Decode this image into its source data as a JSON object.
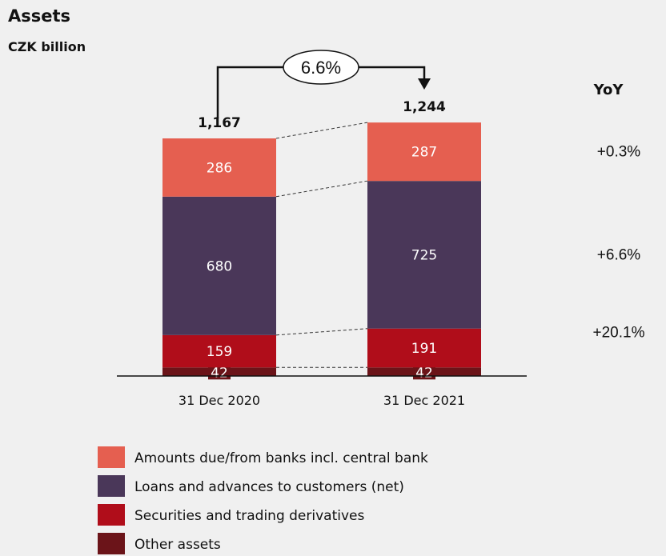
{
  "chart_data": {
    "type": "bar",
    "stacked": true,
    "title": "Assets",
    "subtitle": "CZK billion",
    "categories": [
      "31 Dec 2020",
      "31 Dec 2021"
    ],
    "totals": [
      "1,167",
      "1,244"
    ],
    "growth_label": "6.6%",
    "yoy_header": "YoY",
    "series": [
      {
        "name": "Other assets",
        "values": [
          42,
          42
        ],
        "color": "#6b1419",
        "yoy": ""
      },
      {
        "name": "Securities and trading derivatives",
        "values": [
          159,
          191
        ],
        "color": "#b00d1a",
        "yoy": "+20.1%"
      },
      {
        "name": "Loans and advances to customers (net)",
        "values": [
          680,
          725
        ],
        "color": "#4a3759",
        "yoy": "+6.6%"
      },
      {
        "name": "Amounts due/from banks incl. central bank",
        "values": [
          286,
          287
        ],
        "color": "#e55f50",
        "yoy": "+0.3%"
      }
    ],
    "legend_order": [
      3,
      2,
      1,
      0
    ],
    "legend_position": "bottom-left",
    "grid": false
  }
}
